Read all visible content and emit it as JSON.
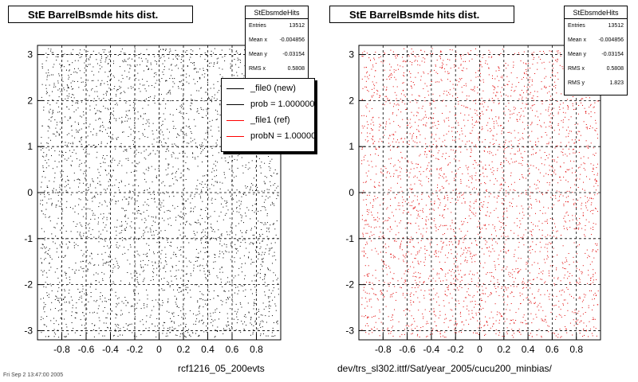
{
  "chart_data": [
    {
      "type": "scatter",
      "title": "StE BarrelBsmde hits dist.",
      "point_color": "#000000",
      "xlim": [
        -1.0,
        1.0
      ],
      "ylim": [
        -3.2,
        3.2
      ],
      "x_ticks": [
        "-0.8",
        "-0.6",
        "-0.4",
        "-0.2",
        "0",
        "0.2",
        "0.4",
        "0.6",
        "0.8"
      ],
      "y_ticks": [
        "-3",
        "-2",
        "-1",
        "0",
        "1",
        "2",
        "3"
      ],
      "grid": true,
      "stats": {
        "title": "StEbsmdeHits",
        "rows": [
          {
            "label": "Entries",
            "value": "13512"
          },
          {
            "label": "Mean x",
            "value": "-0.004856"
          },
          {
            "label": "Mean y",
            "value": "-0.03154"
          },
          {
            "label": "RMS x",
            "value": "0.5808"
          }
        ]
      },
      "legend": {
        "placement": "top-right",
        "entries": [
          {
            "label": "_file0 (new)",
            "color": "#000000"
          },
          {
            "label": "prob = 1.000000",
            "color": "#000000"
          },
          {
            "label": "_file1 (ref)",
            "color": "#ff0000"
          },
          {
            "label": "probN = 1.000000",
            "color": "#ff0000"
          }
        ]
      }
    },
    {
      "type": "scatter",
      "title": "StE BarrelBsmde hits dist.",
      "point_color": "#e00000",
      "xlim": [
        -1.0,
        1.0
      ],
      "ylim": [
        -3.2,
        3.2
      ],
      "x_ticks": [
        "-0.8",
        "-0.6",
        "-0.4",
        "-0.2",
        "0",
        "0.2",
        "0.4",
        "0.6",
        "0.8"
      ],
      "y_ticks": [
        "-3",
        "-2",
        "-1",
        "0",
        "1",
        "2",
        "3"
      ],
      "grid": true,
      "stats": {
        "title": "StEbsmdeHits",
        "rows": [
          {
            "label": "Entries",
            "value": "13512"
          },
          {
            "label": "Mean x",
            "value": "-0.004856"
          },
          {
            "label": "Mean y",
            "value": "-0.03154"
          },
          {
            "label": "RMS x",
            "value": "0.5808"
          },
          {
            "label": "RMS y",
            "value": "1.823"
          }
        ]
      }
    }
  ],
  "footer": {
    "left_label": "rcf1216_05_200evts",
    "right_label": "dev/trs_sl302.ittf/Sat/year_2005/cucu200_minbias/",
    "timestamp": "Fri Sep  2 13:47:00 2005"
  }
}
